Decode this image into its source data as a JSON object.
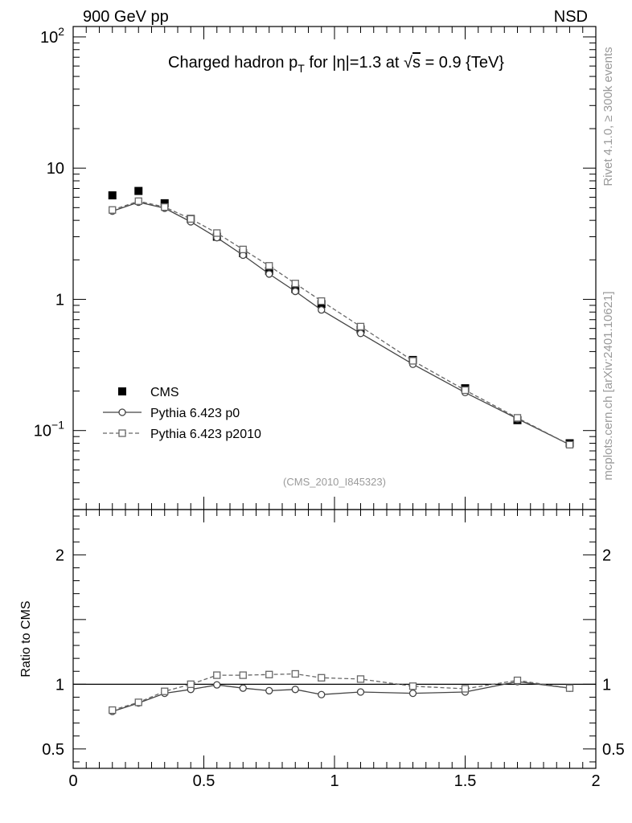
{
  "header": {
    "left": "900 GeV pp",
    "right": "NSD"
  },
  "side_labels": {
    "rivet": "Rivet 4.1.0, ≥ 300k events",
    "mcplots": "mcplots.cern.ch [arXiv:2401.10621]"
  },
  "watermark": "(CMS_2010_I845323)",
  "chart_data": [
    {
      "type": "scatter",
      "title": "Charged hadron p_T for |η|=1.3 at √s = 0.9 {TeV}",
      "title_parts": {
        "a": "Charged hadron p",
        "sub": "T",
        "b": " for |η|=1.3 at √",
        "s": "s",
        "c": " = 0.9 {TeV}"
      },
      "xlabel": "",
      "ylabel": "",
      "xlim": [
        0,
        2
      ],
      "ylim": [
        0.025,
        120
      ],
      "yscale": "log",
      "x_tick_labels": [],
      "y_tick_labels": [
        {
          "value": 100,
          "base": "10",
          "exp": "2"
        },
        {
          "value": 10,
          "base": "10",
          "exp": ""
        },
        {
          "value": 1,
          "base": "1",
          "exp": ""
        },
        {
          "value": 0.1,
          "base": "10",
          "exp": "−1"
        }
      ],
      "legend": {
        "position": "bottom-left",
        "entries": [
          "CMS",
          "Pythia 6.423 p0",
          "Pythia 6.423 p2010"
        ]
      },
      "x": [
        0.15,
        0.25,
        0.35,
        0.45,
        0.55,
        0.65,
        0.75,
        0.85,
        0.95,
        1.1,
        1.3,
        1.5,
        1.7,
        1.9
      ],
      "series": [
        {
          "name": "CMS",
          "marker": "filled-square",
          "color": "#000000",
          "values": [
            6.2,
            6.7,
            5.4,
            4.1,
            3.0,
            2.25,
            1.65,
            1.2,
            0.92,
            0.59,
            0.345,
            0.21,
            0.12,
            0.08
          ]
        },
        {
          "name": "Pythia 6.423 p0",
          "marker": "open-circle",
          "line": "solid",
          "color": "#444444",
          "values": [
            4.7,
            5.5,
            4.95,
            3.9,
            2.95,
            2.17,
            1.56,
            1.15,
            0.83,
            0.55,
            0.32,
            0.195,
            0.123,
            0.078
          ]
        },
        {
          "name": "Pythia 6.423 p2010",
          "marker": "open-square",
          "line": "dashed",
          "color": "#666666",
          "values": [
            4.8,
            5.6,
            5.05,
            4.1,
            3.2,
            2.4,
            1.8,
            1.32,
            0.97,
            0.62,
            0.34,
            0.203,
            0.125,
            0.078
          ]
        }
      ]
    },
    {
      "type": "line",
      "title": "",
      "xlabel": "",
      "ylabel": "Ratio to CMS",
      "xlim": [
        0,
        2
      ],
      "ylim": [
        0.35,
        2.35
      ],
      "yscale": "linear",
      "x_tick_labels": [
        "0",
        "0.5",
        "1",
        "1.5",
        "2"
      ],
      "y_tick_labels": [
        "0.5",
        "1",
        "2"
      ],
      "reference_line": 1,
      "x": [
        0.15,
        0.25,
        0.35,
        0.45,
        0.55,
        0.65,
        0.75,
        0.85,
        0.95,
        1.1,
        1.3,
        1.5,
        1.7,
        1.9
      ],
      "series": [
        {
          "name": "Pythia 6.423 p0",
          "marker": "open-circle",
          "line": "solid",
          "color": "#444444",
          "values": [
            0.79,
            0.855,
            0.93,
            0.96,
            0.995,
            0.97,
            0.95,
            0.96,
            0.92,
            0.94,
            0.93,
            0.94,
            1.02,
            0.97
          ]
        },
        {
          "name": "Pythia 6.423 p2010",
          "marker": "open-square",
          "line": "dashed",
          "color": "#666666",
          "values": [
            0.8,
            0.86,
            0.945,
            1.0,
            1.07,
            1.07,
            1.075,
            1.08,
            1.05,
            1.04,
            0.985,
            0.965,
            1.03,
            0.97
          ]
        }
      ]
    }
  ]
}
